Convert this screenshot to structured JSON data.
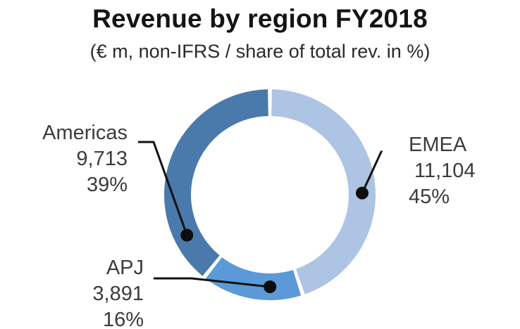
{
  "chart_data": {
    "type": "pie",
    "variant": "donut",
    "title": "Revenue by region FY2018",
    "subtitle": "(€ m, non-IFRS / share of total rev. in %)",
    "categories": [
      "EMEA",
      "APJ",
      "Americas"
    ],
    "values": [
      11104,
      3891,
      9713
    ],
    "value_labels": [
      "11,104",
      "3,891",
      "9,713"
    ],
    "percent_labels": [
      "45%",
      "16%",
      "39%"
    ],
    "colors": [
      "#aec4e4",
      "#5b9ad6",
      "#4a7aab"
    ],
    "start_angle_deg": 0,
    "direction": "clockwise"
  }
}
